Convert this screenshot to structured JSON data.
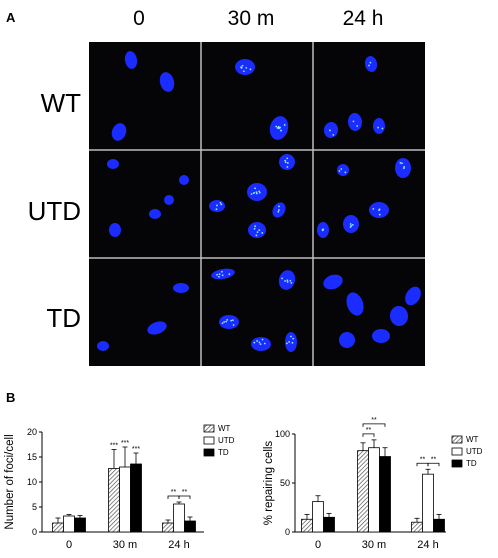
{
  "panel_a": {
    "letter": "A",
    "columns": [
      "0",
      "30 m",
      "24 h"
    ],
    "rows": [
      "WT",
      "UTD",
      "TD"
    ],
    "nucleus_color": "#1a2cff",
    "focus_color": "#8fe8ff",
    "separator_color": "#bdbdbd"
  },
  "panel_b": {
    "letter": "B"
  },
  "chart_data": [
    {
      "type": "bar",
      "ylabel": "Number of foci/cell",
      "categories": [
        "0",
        "30 m",
        "24 h"
      ],
      "ylim": [
        0,
        20
      ],
      "yticks": [
        0,
        5,
        10,
        15,
        20
      ],
      "series": [
        {
          "name": "WT",
          "values": [
            1.8,
            12.7,
            1.8
          ],
          "errors": [
            1.0,
            3.8,
            0.6
          ],
          "fill": "hatched"
        },
        {
          "name": "UTD",
          "values": [
            3.2,
            13.0,
            5.6
          ],
          "errors": [
            0.3,
            4.0,
            0.4
          ],
          "fill": "#ffffff"
        },
        {
          "name": "TD",
          "values": [
            2.8,
            13.6,
            2.2
          ],
          "errors": [
            0.5,
            2.2,
            0.8
          ],
          "fill": "#000000"
        }
      ],
      "bar_labels": [
        {
          "category": "30 m",
          "series": "WT",
          "text": "***"
        },
        {
          "category": "30 m",
          "series": "UTD",
          "text": "***"
        },
        {
          "category": "30 m",
          "series": "TD",
          "text": "***"
        }
      ],
      "brackets": [
        {
          "category": "24 h",
          "from": "WT",
          "to": "UTD",
          "text": "**"
        },
        {
          "category": "24 h",
          "from": "UTD",
          "to": "TD",
          "text": "**"
        }
      ],
      "legend": "top-right"
    },
    {
      "type": "bar",
      "ylabel": "% repairing cells",
      "categories": [
        "0",
        "30 m",
        "24 h"
      ],
      "ylim": [
        0,
        100
      ],
      "yticks": [
        0,
        50,
        100
      ],
      "series": [
        {
          "name": "WT",
          "values": [
            13,
            83,
            10
          ],
          "errors": [
            5,
            8,
            4
          ],
          "fill": "hatched"
        },
        {
          "name": "UTD",
          "values": [
            31,
            86,
            59
          ],
          "errors": [
            6,
            8,
            5
          ],
          "fill": "#ffffff"
        },
        {
          "name": "TD",
          "values": [
            15,
            77,
            13
          ],
          "errors": [
            4,
            9,
            5
          ],
          "fill": "#000000"
        }
      ],
      "bar_labels": [],
      "brackets": [
        {
          "category": "30 m",
          "from": "WT",
          "to": "TD",
          "text": "**",
          "level": 2
        },
        {
          "category": "30 m",
          "from": "WT",
          "to": "UTD",
          "text": "**",
          "level": 1
        },
        {
          "category": "24 h",
          "from": "WT",
          "to": "UTD",
          "text": "**",
          "level": 1
        },
        {
          "category": "24 h",
          "from": "UTD",
          "to": "TD",
          "text": "**",
          "level": 1
        }
      ],
      "legend": "top-right"
    }
  ]
}
